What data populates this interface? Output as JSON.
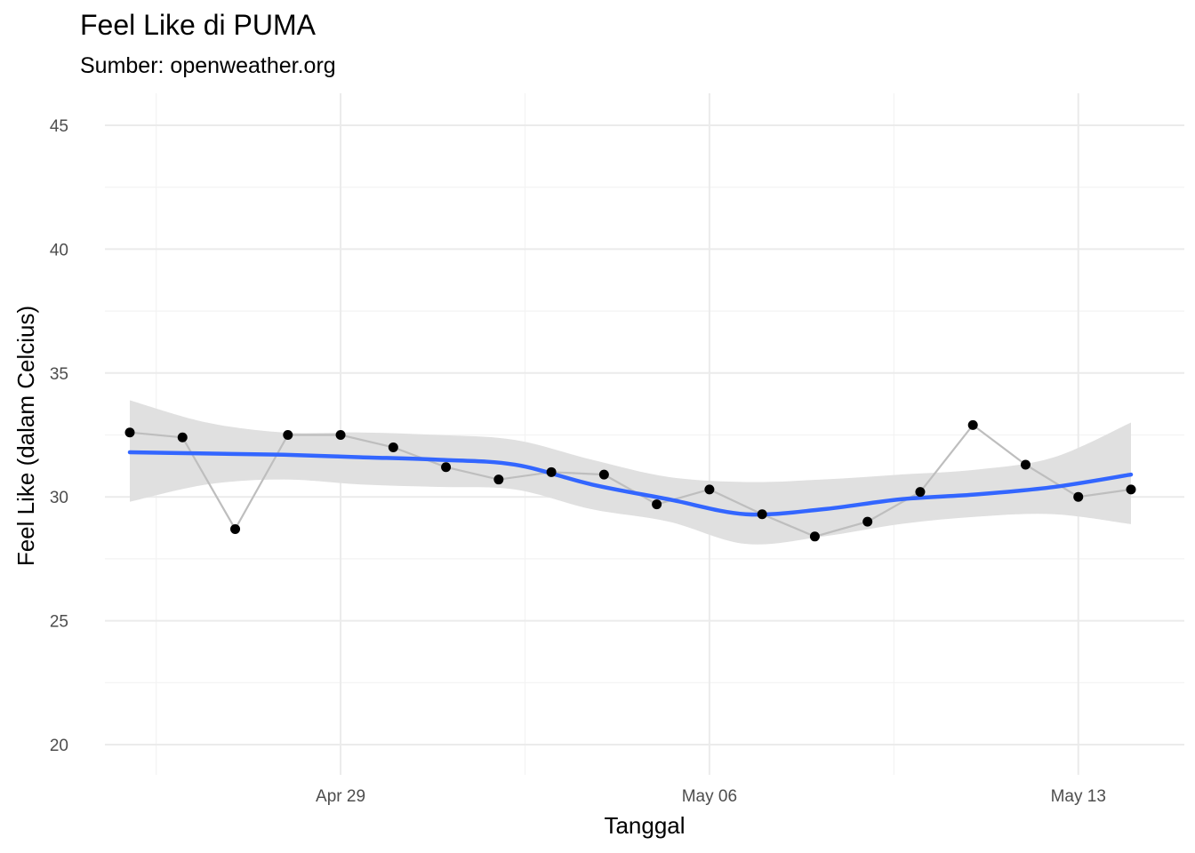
{
  "chart_data": {
    "type": "line",
    "title": "Feel Like di PUMA",
    "subtitle": "Sumber: openweather.org",
    "xlabel": "Tanggal",
    "ylabel": "Feel Like (dalam Celcius)",
    "x_tick_labels": [
      "Apr 29",
      "May 06",
      "May 13"
    ],
    "y_tick_labels": [
      "20",
      "25",
      "30",
      "35",
      "40",
      "45"
    ],
    "ylim": [
      20,
      45
    ],
    "grid": true,
    "series": [
      {
        "values": [
          {
            "x": "Apr 25",
            "y": 32.6
          },
          {
            "x": "Apr 26",
            "y": 32.4
          },
          {
            "x": "Apr 27",
            "y": 28.7
          },
          {
            "x": "Apr 28",
            "y": 32.5
          },
          {
            "x": "Apr 29",
            "y": 32.5
          },
          {
            "x": "Apr 30",
            "y": 32.0
          },
          {
            "x": "May 01",
            "y": 31.2
          },
          {
            "x": "May 02",
            "y": 30.7
          },
          {
            "x": "May 03",
            "y": 31.0
          },
          {
            "x": "May 04",
            "y": 30.9
          },
          {
            "x": "May 05",
            "y": 29.7
          },
          {
            "x": "May 06",
            "y": 30.3
          },
          {
            "x": "May 07",
            "y": 29.3
          },
          {
            "x": "May 08",
            "y": 28.4
          },
          {
            "x": "May 09",
            "y": 29.0
          },
          {
            "x": "May 10",
            "y": 30.2
          },
          {
            "x": "May 11",
            "y": 32.9
          },
          {
            "x": "May 12",
            "y": 31.3
          },
          {
            "x": "May 13",
            "y": 30.0
          },
          {
            "x": "May 14",
            "y": 30.3
          }
        ]
      }
    ],
    "trend": {
      "values": [
        31.8,
        31.75,
        31.7,
        31.6,
        31.5,
        31.3,
        30.5,
        29.9,
        29.3,
        29.5,
        29.9,
        30.1,
        30.4,
        30.9
      ],
      "ci_upper": [
        33.9,
        33.0,
        32.6,
        32.6,
        32.5,
        32.3,
        31.5,
        30.8,
        30.6,
        30.7,
        30.9,
        31.1,
        31.6,
        33.0
      ],
      "ci_lower": [
        29.8,
        30.5,
        30.7,
        30.5,
        30.4,
        30.3,
        29.5,
        29.0,
        28.1,
        28.4,
        28.9,
        29.2,
        29.3,
        28.9
      ]
    },
    "colors": {
      "trend_line": "#3366ff",
      "ci_band": "#e0e0e0",
      "raw_line": "#bebebe",
      "points": "#000000",
      "grid_major": "#ebebeb",
      "grid_minor": "#f3f3f3"
    }
  }
}
